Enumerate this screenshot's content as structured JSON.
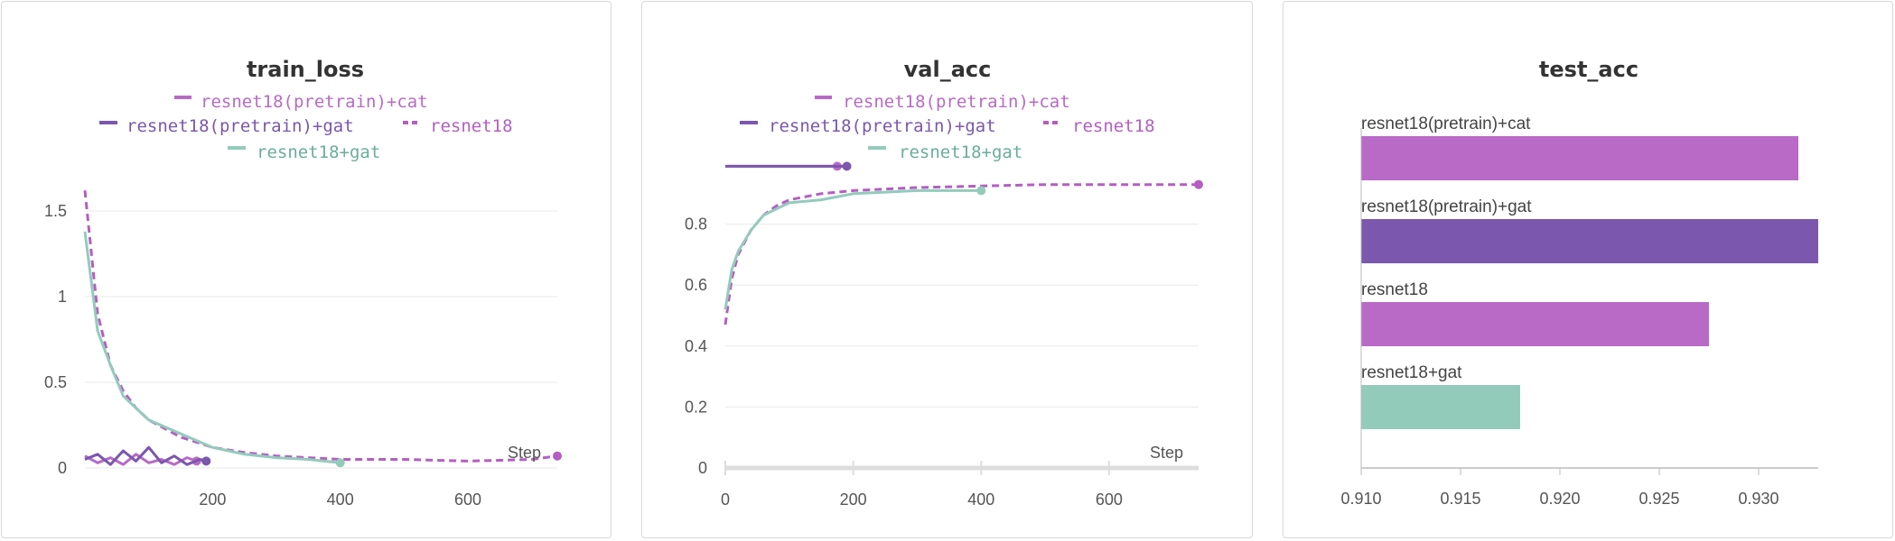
{
  "colors": {
    "series1": "#b86ac6",
    "series2": "#7b57ad",
    "series3": "#b45ec2",
    "series4": "#93cbbb",
    "grid": "#e8e8e8",
    "axis": "#bbbbbb"
  },
  "chart_data": [
    {
      "type": "line",
      "title": "train_loss",
      "xlabel": "Step",
      "ylabel": "",
      "xlim": [
        0,
        740
      ],
      "ylim": [
        0,
        1.6
      ],
      "xticks": [
        "200",
        "400",
        "600"
      ],
      "yticks": [
        "0",
        "0.5",
        "1",
        "1.5"
      ],
      "legend": [
        "resnet18(pretrain)+cat",
        "resnet18(pretrain)+gat",
        "resnet18",
        "resnet18+gat"
      ],
      "series": [
        {
          "name": "resnet18(pretrain)+cat",
          "x": [
            0,
            20,
            40,
            60,
            80,
            100,
            120,
            140,
            160,
            175
          ],
          "y": [
            0.07,
            0.03,
            0.06,
            0.02,
            0.08,
            0.03,
            0.05,
            0.02,
            0.06,
            0.04
          ]
        },
        {
          "name": "resnet18(pretrain)+gat",
          "x": [
            0,
            20,
            40,
            60,
            80,
            100,
            120,
            140,
            160,
            180,
            190
          ],
          "y": [
            0.05,
            0.08,
            0.02,
            0.1,
            0.04,
            0.12,
            0.03,
            0.07,
            0.02,
            0.05,
            0.04
          ]
        },
        {
          "name": "resnet18",
          "x": [
            0,
            20,
            40,
            60,
            80,
            100,
            150,
            200,
            250,
            300,
            400,
            500,
            600,
            700,
            740
          ],
          "y": [
            1.62,
            0.9,
            0.6,
            0.45,
            0.35,
            0.28,
            0.18,
            0.12,
            0.09,
            0.07,
            0.05,
            0.05,
            0.04,
            0.05,
            0.07
          ]
        },
        {
          "name": "resnet18+gat",
          "x": [
            0,
            20,
            40,
            60,
            80,
            100,
            150,
            200,
            250,
            300,
            350,
            400
          ],
          "y": [
            1.38,
            0.8,
            0.6,
            0.42,
            0.35,
            0.28,
            0.2,
            0.12,
            0.08,
            0.06,
            0.05,
            0.03
          ]
        }
      ]
    },
    {
      "type": "line",
      "title": "val_acc",
      "xlabel": "Step",
      "ylabel": "",
      "xlim": [
        0,
        740
      ],
      "ylim": [
        0,
        1.0
      ],
      "xticks": [
        "0",
        "200",
        "400",
        "600"
      ],
      "yticks": [
        "0",
        "0.2",
        "0.4",
        "0.6",
        "0.8"
      ],
      "legend": [
        "resnet18(pretrain)+cat",
        "resnet18(pretrain)+gat",
        "resnet18",
        "resnet18+gat"
      ],
      "series": [
        {
          "name": "resnet18(pretrain)+cat",
          "x": [
            0,
            40,
            80,
            120,
            160,
            175
          ],
          "y": [
            0.99,
            0.99,
            0.99,
            0.99,
            0.99,
            0.99
          ]
        },
        {
          "name": "resnet18(pretrain)+gat",
          "x": [
            0,
            40,
            80,
            120,
            160,
            190
          ],
          "y": [
            0.99,
            0.99,
            0.99,
            0.99,
            0.99,
            0.99
          ]
        },
        {
          "name": "resnet18",
          "x": [
            0,
            10,
            20,
            40,
            60,
            80,
            100,
            150,
            200,
            300,
            400,
            500,
            600,
            700,
            740
          ],
          "y": [
            0.47,
            0.62,
            0.7,
            0.78,
            0.83,
            0.86,
            0.88,
            0.9,
            0.91,
            0.92,
            0.925,
            0.93,
            0.93,
            0.93,
            0.93
          ]
        },
        {
          "name": "resnet18+gat",
          "x": [
            0,
            10,
            20,
            40,
            60,
            80,
            100,
            150,
            200,
            250,
            300,
            350,
            400
          ],
          "y": [
            0.52,
            0.65,
            0.71,
            0.78,
            0.83,
            0.85,
            0.87,
            0.88,
            0.9,
            0.905,
            0.91,
            0.91,
            0.91
          ]
        }
      ]
    },
    {
      "type": "bar",
      "orientation": "horizontal",
      "title": "test_acc",
      "xlabel": "",
      "ylabel": "",
      "xlim": [
        0.91,
        0.933
      ],
      "xticks": [
        "0.910",
        "0.915",
        "0.920",
        "0.925",
        "0.930"
      ],
      "categories": [
        "resnet18(pretrain)+cat",
        "resnet18(pretrain)+gat",
        "resnet18",
        "resnet18+gat"
      ],
      "values": [
        0.932,
        0.933,
        0.9275,
        0.918
      ]
    }
  ]
}
